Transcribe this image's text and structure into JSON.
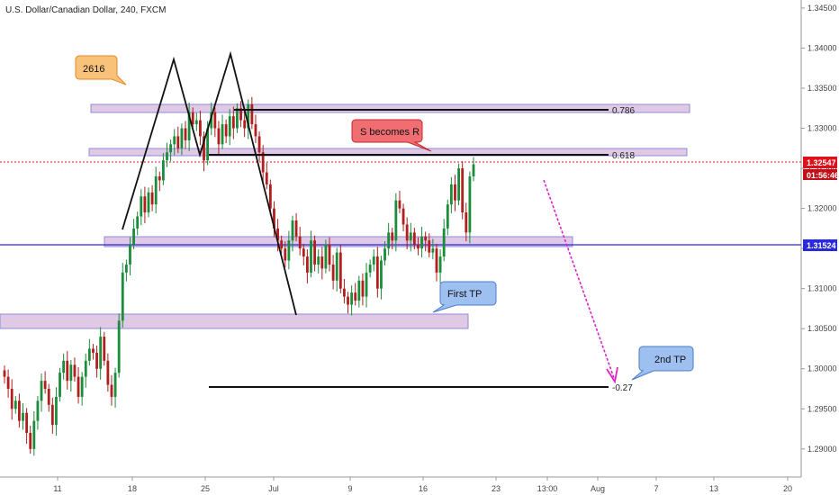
{
  "chart_data": {
    "type": "candlestick",
    "title": "U.S. Dollar/Canadian Dollar, 240, FXCM",
    "y_ticks": [
      "1.34500",
      "1.34000",
      "1.33500",
      "1.33000",
      "1.32500",
      "1.32000",
      "1.31500",
      "1.31000",
      "1.30500",
      "1.30000",
      "1.29500",
      "1.29000"
    ],
    "y_tick_values": [
      1.345,
      1.34,
      1.335,
      1.33,
      1.325,
      1.32,
      1.315,
      1.31,
      1.305,
      1.3,
      1.295,
      1.29
    ],
    "ylim": [
      1.2865,
      1.346
    ],
    "x_ticks": [
      "11",
      "18",
      "25",
      "Jul",
      "9",
      "16",
      "23",
      "13:00",
      "Aug",
      "7",
      "13",
      "20"
    ],
    "current_price_label": "1.32547",
    "current_price": 1.32547,
    "countdown_label": "01:56:46",
    "horizontal_line_label": "1.31524",
    "horizontal_line_price": 1.31524,
    "closes": [
      1.299,
      1.2975,
      1.295,
      1.296,
      1.2935,
      1.2945,
      1.292,
      1.29,
      1.2935,
      1.296,
      1.2985,
      1.2975,
      1.2955,
      1.293,
      1.2965,
      1.2995,
      1.301,
      1.2985,
      1.3005,
      1.299,
      1.2965,
      1.299,
      1.301,
      1.3025,
      1.302,
      1.3,
      1.304,
      1.301,
      1.298,
      1.2965,
      1.2995,
      1.306,
      1.312,
      1.313,
      1.3155,
      1.3175,
      1.319,
      1.3215,
      1.3195,
      1.322,
      1.3205,
      1.324,
      1.3235,
      1.326,
      1.327,
      1.328,
      1.329,
      1.3275,
      1.33,
      1.3285,
      1.332,
      1.3305,
      1.331,
      1.329,
      1.326,
      1.33,
      1.332,
      1.33,
      1.328,
      1.3305,
      1.329,
      1.3315,
      1.33,
      1.3325,
      1.331,
      1.33,
      1.333,
      1.3305,
      1.329,
      1.327,
      1.3245,
      1.323,
      1.32,
      1.3175,
      1.316,
      1.315,
      1.3135,
      1.316,
      1.3185,
      1.3165,
      1.315,
      1.314,
      1.312,
      1.316,
      1.313,
      1.314,
      1.3125,
      1.3155,
      1.313,
      1.311,
      1.3145,
      1.31,
      1.309,
      1.308,
      1.3095,
      1.3085,
      1.311,
      1.309,
      1.312,
      1.313,
      1.314,
      1.31,
      1.3135,
      1.315,
      1.317,
      1.316,
      1.321,
      1.32,
      1.318,
      1.316,
      1.317,
      1.3155,
      1.315,
      1.3165,
      1.316,
      1.3145,
      1.315,
      1.312,
      1.314,
      1.3175,
      1.3205,
      1.323,
      1.321,
      1.325,
      1.3195,
      1.317,
      1.324,
      1.3255
    ]
  },
  "annotations": {
    "fib_786": "0.786",
    "fib_618": "0.618",
    "fib_neg027": "-0.27",
    "callout_2616": "2616",
    "callout_s_becomes_r": "S becomes R",
    "callout_first_tp": "First TP",
    "callout_2nd_tp": "2nd TP"
  },
  "colors": {
    "up": "#1a8c3a",
    "down": "#b01e1e",
    "zone": "#c8a6d0",
    "zone_border": "#8f8bd8",
    "blue_line": "#2a2ad8",
    "price_red": "#e0101a",
    "arrow": "#e020c8",
    "callout_orange": "#f8c27a",
    "callout_red": "#f06e72",
    "callout_blue": "#9ec0f0"
  }
}
